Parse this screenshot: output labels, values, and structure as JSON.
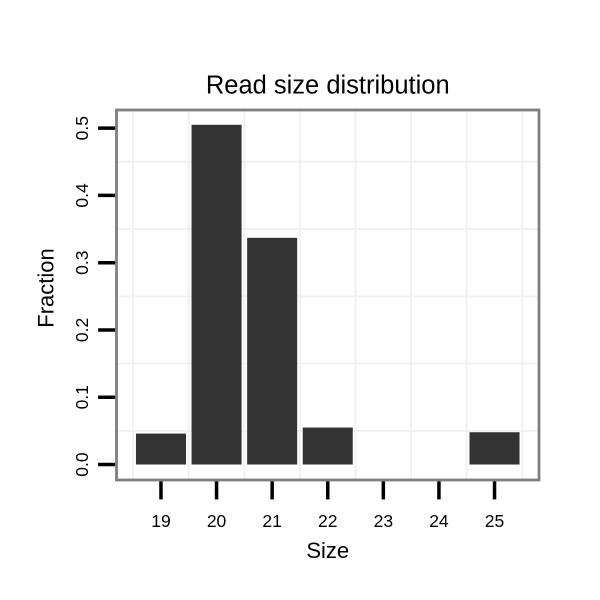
{
  "figure": {
    "background": "#ffffff"
  },
  "chart_data": {
    "type": "bar",
    "title": "Read size distribution",
    "xlabel": "Size",
    "ylabel": "Fraction",
    "categories": [
      19,
      20,
      21,
      22,
      23,
      24,
      25
    ],
    "values": [
      0.046,
      0.505,
      0.337,
      0.055,
      0,
      0,
      0.048
    ],
    "bar_width": 0.9,
    "xlim": [
      18.2,
      25.8
    ],
    "ylim": [
      -0.023,
      0.527
    ],
    "xticks": [
      19,
      20,
      21,
      22,
      23,
      24,
      25
    ],
    "xtick_labels": [
      "19",
      "20",
      "21",
      "22",
      "23",
      "24",
      "25"
    ],
    "yticks": [
      0,
      0.1,
      0.2,
      0.3,
      0.4,
      0.5
    ],
    "ytick_labels": [
      "0.0",
      "0.1",
      "0.2",
      "0.3",
      "0.4",
      "0.5"
    ],
    "x_minor_gridlines": [
      18.5,
      19.5,
      20.5,
      21.5,
      22.5,
      23.5,
      24.5,
      25.5
    ],
    "y_minor_gridlines": [
      0.05,
      0.15,
      0.25,
      0.35,
      0.45
    ],
    "grid": "minor-only",
    "legend": "none",
    "colors": {
      "bar": "#333333",
      "panel_border": "#7f7f7f",
      "panel_background": "#ffffff",
      "gridline": "#f0f0f0",
      "tick": "#000000",
      "text": "#000000"
    }
  }
}
